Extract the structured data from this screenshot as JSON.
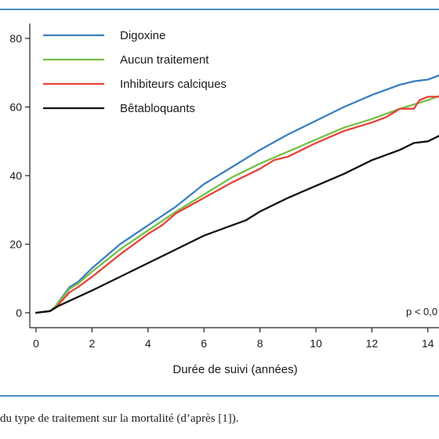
{
  "caption": "du type de traitement sur la mortalité (d’après [1]).",
  "chart_data": {
    "type": "line",
    "xlabel": "Durée de suivi (années)",
    "ylabel": "",
    "xlim": [
      0,
      14.7
    ],
    "ylim": [
      0,
      80
    ],
    "x_ticks": [
      "0",
      "2",
      "4",
      "6",
      "8",
      "10",
      "12",
      "14"
    ],
    "y_ticks": [
      "0",
      "20",
      "40",
      "60",
      "80"
    ],
    "x_tick_values": [
      0,
      2,
      4,
      6,
      8,
      10,
      12,
      14
    ],
    "y_tick_values": [
      0,
      20,
      40,
      60,
      80
    ],
    "legend_position": "top-left",
    "annotation": "p < 0,0",
    "grid": false,
    "series": [
      {
        "name": "Digoxine",
        "color": "#3a7fc0",
        "x": [
          0,
          0.5,
          0.7,
          1.2,
          1.5,
          2,
          3,
          4,
          5,
          6,
          7,
          8,
          9,
          10,
          11,
          12,
          13,
          13.5,
          14,
          14.5
        ],
        "y": [
          0,
          0.5,
          2,
          7.5,
          9,
          13,
          20,
          25.5,
          31,
          37.5,
          42.5,
          47.5,
          52,
          56,
          60,
          63.5,
          66.5,
          67.5,
          68,
          69.5
        ]
      },
      {
        "name": "Aucun traitement",
        "color": "#74c044",
        "x": [
          0,
          0.5,
          0.7,
          1.2,
          1.5,
          2,
          3,
          4,
          5,
          6,
          7,
          8,
          9,
          10,
          11,
          12,
          13,
          14,
          14.5
        ],
        "y": [
          0,
          0.5,
          2,
          7,
          8.5,
          12,
          18.5,
          24,
          29.5,
          34.5,
          39.5,
          43.5,
          47,
          50.5,
          54,
          56.5,
          59.5,
          62,
          63.5
        ]
      },
      {
        "name": "Inhibiteurs calciques",
        "color": "#e8413a",
        "x": [
          0,
          0.5,
          0.7,
          1.2,
          1.5,
          2,
          3,
          4,
          4.5,
          5,
          6,
          7,
          8,
          8.5,
          9,
          10,
          11,
          12,
          12.5,
          13,
          13.5,
          13.7,
          14,
          14.5
        ],
        "y": [
          0,
          0.5,
          1.5,
          6,
          7.5,
          10.5,
          17,
          23,
          25.5,
          29,
          33.5,
          38,
          42,
          44.5,
          45.5,
          49.5,
          53,
          55.5,
          57,
          59.5,
          59.5,
          62,
          63,
          63
        ]
      },
      {
        "name": "Bêtabloquants",
        "color": "#111111",
        "x": [
          0,
          0.5,
          0.8,
          1.2,
          2,
          3,
          4,
          5,
          6,
          7,
          7.5,
          8,
          9,
          10,
          11,
          12,
          13,
          13.5,
          14,
          14.5
        ],
        "y": [
          0,
          0.5,
          2,
          3.5,
          6.5,
          10.5,
          14.5,
          18.5,
          22.5,
          25.5,
          27,
          29.5,
          33.5,
          37,
          40.5,
          44.5,
          47.5,
          49.5,
          50,
          52
        ]
      }
    ]
  }
}
